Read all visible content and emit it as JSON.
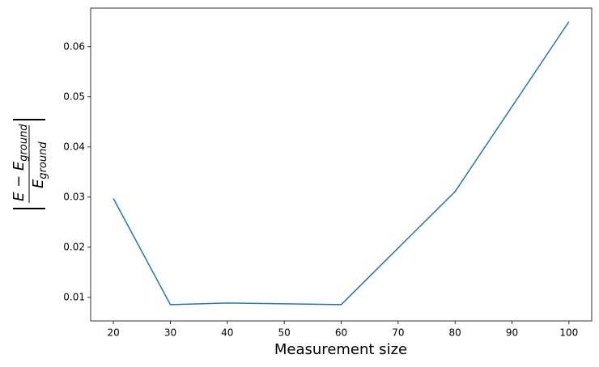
{
  "chart_data": {
    "type": "line",
    "x_label": "Measurement size",
    "y_label": {
      "numerator": "E − E",
      "subscript": "ground",
      "denominator": "E"
    },
    "x": [
      20,
      30,
      40,
      60,
      80,
      100
    ],
    "series": [
      {
        "color": "#1f77b4",
        "values": [
          0.0297,
          0.00855,
          0.00887,
          0.00855,
          0.0311,
          0.065
        ]
      }
    ],
    "xlim": [
      16,
      104
    ],
    "ylim": [
      0.0053,
      0.0677
    ],
    "xticks": [
      20,
      30,
      40,
      50,
      60,
      70,
      80,
      90,
      100
    ],
    "yticks": [
      0.01,
      0.02,
      0.03,
      0.04,
      0.05,
      0.06
    ]
  }
}
